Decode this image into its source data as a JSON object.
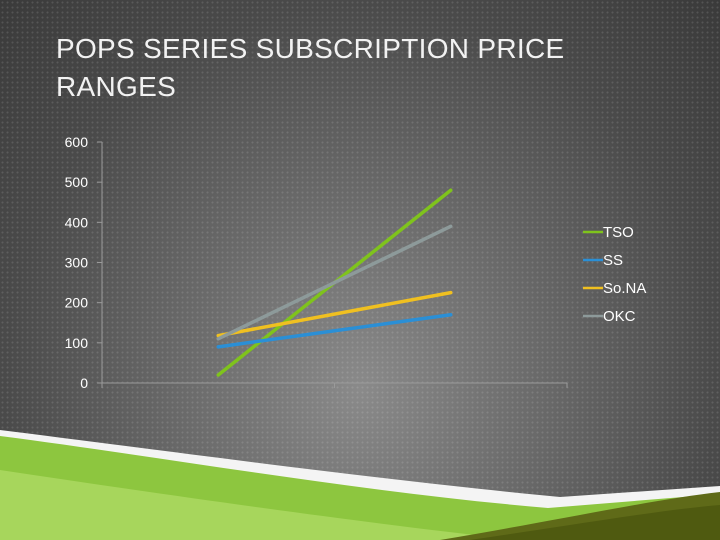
{
  "slide": {
    "title": "POPS SERIES SUBSCRIPTION PRICE RANGES"
  },
  "chart_data": {
    "type": "line",
    "title": "",
    "xlabel": "",
    "ylabel": "",
    "x": [
      "",
      ""
    ],
    "ylim": [
      0,
      600
    ],
    "yticks": [
      0,
      100,
      200,
      300,
      400,
      500,
      600
    ],
    "grid": false,
    "legend_position": "right",
    "series": [
      {
        "name": "TSO",
        "values": [
          20,
          480
        ],
        "color": "#7fc31c"
      },
      {
        "name": "SS",
        "values": [
          90,
          170
        ],
        "color": "#2a8fd6"
      },
      {
        "name": "So.NA",
        "values": [
          118,
          225
        ],
        "color": "#f0c020"
      },
      {
        "name": "OKC",
        "values": [
          110,
          390
        ],
        "color": "#8d9a9a"
      }
    ]
  }
}
